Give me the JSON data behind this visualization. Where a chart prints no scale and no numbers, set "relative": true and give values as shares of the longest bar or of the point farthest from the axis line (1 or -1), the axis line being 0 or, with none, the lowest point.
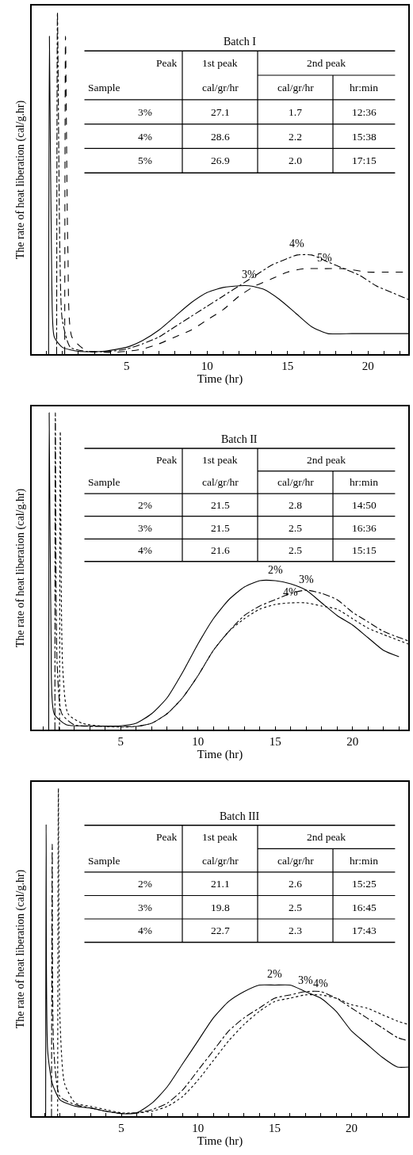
{
  "chart_data": [
    {
      "type": "line",
      "title": "Batch I",
      "xlabel": "Time (hr)",
      "ylabel": "The rate of heat liberation (cal/g.hr)",
      "relative": true,
      "tick_labels": "x",
      "xlim": [
        -0.9,
        22.5
      ],
      "xticks": [
        {
          "value": 0,
          "label": null
        },
        {
          "value": 1,
          "label": null
        },
        {
          "value": 2,
          "label": null
        },
        {
          "value": 3,
          "label": null
        },
        {
          "value": 4,
          "label": null
        },
        5,
        {
          "value": 6,
          "label": null
        },
        {
          "value": 7,
          "label": null
        },
        {
          "value": 8,
          "label": null
        },
        {
          "value": 9,
          "label": null
        },
        10,
        {
          "value": 11,
          "label": null
        },
        {
          "value": 12,
          "label": null
        },
        {
          "value": 13,
          "label": null
        },
        {
          "value": 14,
          "label": null
        },
        15,
        {
          "value": 16,
          "label": null
        },
        {
          "value": 17,
          "label": null
        },
        {
          "value": 18,
          "label": null
        },
        {
          "value": 19,
          "label": null
        },
        20,
        {
          "value": 21,
          "label": null
        },
        {
          "value": 22,
          "label": null
        }
      ],
      "series": [
        {
          "color": "#000000",
          "line_style": "solid",
          "x": [
            0.15,
            0.2,
            0.35,
            0.5,
            1,
            2,
            3.5,
            5,
            6,
            7,
            8,
            9,
            10,
            11,
            12,
            12.6,
            13.5,
            14.5,
            15.5,
            16.5,
            17.5,
            19,
            20,
            21,
            22.5
          ],
          "values": [
            0,
            0.93,
            0.2,
            0.05,
            0.02,
            0.008,
            0.008,
            0.02,
            0.04,
            0.07,
            0.11,
            0.15,
            0.18,
            0.195,
            0.2,
            0.2,
            0.19,
            0.16,
            0.12,
            0.08,
            0.06,
            0.06,
            0.06,
            0.06,
            0.06
          ]
        },
        {
          "color": "#000000",
          "line_style": "dashdot",
          "x": [
            0.65,
            0.7,
            0.85,
            1,
            1.5,
            2.5,
            4,
            5,
            6,
            7,
            8,
            9,
            10,
            11,
            12,
            13,
            14,
            15,
            15.6,
            16.5,
            17.5,
            18.5,
            19.5,
            20.5,
            21.5,
            22.5
          ],
          "values": [
            0,
            1,
            0.3,
            0.1,
            0.02,
            0.008,
            0.008,
            0.015,
            0.03,
            0.05,
            0.08,
            0.11,
            0.14,
            0.17,
            0.2,
            0.23,
            0.26,
            0.28,
            0.29,
            0.29,
            0.27,
            0.25,
            0.23,
            0.2,
            0.18,
            0.16
          ]
        },
        {
          "color": "#000000",
          "line_style": "dashed",
          "x": [
            1.15,
            1.2,
            1.35,
            1.6,
            2.5,
            4,
            5,
            6,
            7,
            8,
            9,
            10,
            11,
            12,
            13,
            14,
            15,
            16,
            17.3,
            18.5,
            20,
            21,
            22.5
          ],
          "values": [
            0,
            0.93,
            0.3,
            0.05,
            0.01,
            0.005,
            0.008,
            0.015,
            0.03,
            0.05,
            0.07,
            0.1,
            0.13,
            0.17,
            0.2,
            0.22,
            0.24,
            0.25,
            0.25,
            0.25,
            0.24,
            0.24,
            0.24
          ]
        }
      ],
      "annotations": [
        "Peak",
        "1st peak",
        "2nd peak",
        "Sample",
        "cal/gr/hr",
        "cal/gr/hr",
        "hr:min",
        "3%",
        "27.1",
        "1.7",
        "12:36",
        "4%",
        "28.6",
        "2.2",
        "15:38",
        "5%",
        "26.9",
        "2.0",
        "17:15",
        {
          "text": "3%",
          "x": 12.6,
          "y": 0.2
        },
        {
          "text": "4%",
          "x": 15.6,
          "y": 0.29
        },
        {
          "text": "5%",
          "x": 17.3,
          "y": 0.25
        }
      ]
    },
    {
      "type": "line",
      "title": "Batch II",
      "xlabel": "Time (hr)",
      "ylabel": "The rate of heat liberation (cal/g.hr)",
      "relative": true,
      "tick_labels": "x",
      "xlim": [
        -0.75,
        23.6
      ],
      "xticks": [
        {
          "value": 0,
          "label": null
        },
        {
          "value": 1,
          "label": null
        },
        {
          "value": 2,
          "label": null
        },
        {
          "value": 3,
          "label": null
        },
        {
          "value": 4,
          "label": null
        },
        5,
        {
          "value": 6,
          "label": null
        },
        {
          "value": 7,
          "label": null
        },
        {
          "value": 8,
          "label": null
        },
        {
          "value": 9,
          "label": null
        },
        10,
        {
          "value": 11,
          "label": null
        },
        {
          "value": 12,
          "label": null
        },
        {
          "value": 13,
          "label": null
        },
        {
          "value": 14,
          "label": null
        },
        15,
        {
          "value": 16,
          "label": null
        },
        {
          "value": 17,
          "label": null
        },
        {
          "value": 18,
          "label": null
        },
        {
          "value": 19,
          "label": null
        },
        20,
        {
          "value": 21,
          "label": null
        },
        {
          "value": 22,
          "label": null
        },
        {
          "value": 23,
          "label": null
        }
      ],
      "series": [
        {
          "color": "#000000",
          "line_style": "solid",
          "x": [
            0.35,
            0.38,
            0.5,
            0.7,
            1.5,
            3,
            5,
            6,
            7,
            8,
            9,
            10,
            11,
            12,
            13,
            14,
            15,
            16,
            17,
            18,
            19,
            20,
            21,
            22,
            23
          ],
          "values": [
            0,
            1,
            0.3,
            0.05,
            0.015,
            0.012,
            0.012,
            0.02,
            0.05,
            0.1,
            0.18,
            0.27,
            0.35,
            0.41,
            0.45,
            0.47,
            0.47,
            0.46,
            0.44,
            0.4,
            0.36,
            0.33,
            0.29,
            0.25,
            0.23
          ]
        },
        {
          "color": "#000000",
          "line_style": "dashdot",
          "x": [
            0.75,
            0.78,
            0.9,
            1.2,
            2,
            4,
            5,
            6,
            7,
            8,
            9,
            10,
            11,
            12,
            13,
            14,
            15,
            16,
            17,
            18,
            19,
            20,
            21,
            22,
            23.6
          ],
          "values": [
            0,
            1,
            0.2,
            0.05,
            0.015,
            0.01,
            0.01,
            0.01,
            0.02,
            0.05,
            0.1,
            0.17,
            0.25,
            0.31,
            0.36,
            0.39,
            0.41,
            0.43,
            0.44,
            0.43,
            0.41,
            0.37,
            0.34,
            0.31,
            0.28
          ]
        },
        {
          "color": "#000000",
          "line_style": "dotted",
          "x": [
            1.05,
            1.1,
            1.25,
            1.6,
            2.5,
            4,
            5,
            6,
            7,
            8,
            9,
            10,
            11,
            12,
            13,
            14,
            15,
            16,
            17,
            18,
            19,
            20,
            21,
            22,
            23.6
          ],
          "values": [
            0,
            0.94,
            0.2,
            0.05,
            0.02,
            0.01,
            0.008,
            0.01,
            0.02,
            0.05,
            0.1,
            0.17,
            0.25,
            0.31,
            0.35,
            0.38,
            0.395,
            0.4,
            0.4,
            0.39,
            0.38,
            0.35,
            0.32,
            0.3,
            0.27
          ]
        }
      ],
      "annotations": [
        "Peak",
        "1st peak",
        "2nd peak",
        "Sample",
        "cal/gr/hr",
        "cal/gr/hr",
        "hr:min",
        "2%",
        "21.5",
        "2.8",
        "14:50",
        "3%",
        "21.5",
        "2.5",
        "16:36",
        "4%",
        "21.6",
        "2.5",
        "15:15",
        {
          "text": "2%",
          "x": 15,
          "y": 0.47
        },
        {
          "text": "3%",
          "x": 17,
          "y": 0.44
        },
        {
          "text": "4%",
          "x": 16,
          "y": 0.4
        }
      ]
    },
    {
      "type": "line",
      "title": "Batch III",
      "xlabel": "Time (hr)",
      "ylabel": "The rate of heat liberation (cal/g.hr)",
      "relative": true,
      "tick_labels": "x",
      "xlim": [
        -0.84,
        23.7
      ],
      "xticks": [
        {
          "value": 0,
          "label": null
        },
        {
          "value": 1,
          "label": null
        },
        {
          "value": 2,
          "label": null
        },
        {
          "value": 3,
          "label": null
        },
        {
          "value": 4,
          "label": null
        },
        5,
        {
          "value": 6,
          "label": null
        },
        {
          "value": 7,
          "label": null
        },
        {
          "value": 8,
          "label": null
        },
        {
          "value": 9,
          "label": null
        },
        10,
        {
          "value": 11,
          "label": null
        },
        {
          "value": 12,
          "label": null
        },
        {
          "value": 13,
          "label": null
        },
        {
          "value": 14,
          "label": null
        },
        15,
        {
          "value": 16,
          "label": null
        },
        {
          "value": 17,
          "label": null
        },
        {
          "value": 18,
          "label": null
        },
        {
          "value": 19,
          "label": null
        },
        20,
        {
          "value": 21,
          "label": null
        },
        {
          "value": 22,
          "label": null
        },
        {
          "value": 23,
          "label": null
        }
      ],
      "series": [
        {
          "color": "#000000",
          "line_style": "solid",
          "x": [
            0.07,
            0.1,
            0.2,
            0.5,
            1,
            2,
            3,
            4,
            5,
            6,
            7,
            8,
            9,
            10,
            11,
            12,
            13,
            14,
            15,
            16,
            17,
            18,
            19,
            20,
            21,
            22,
            23,
            23.7
          ],
          "values": [
            0,
            0.89,
            0.2,
            0.1,
            0.05,
            0.03,
            0.025,
            0.015,
            0.008,
            0.01,
            0.04,
            0.09,
            0.16,
            0.23,
            0.3,
            0.35,
            0.38,
            0.4,
            0.4,
            0.4,
            0.38,
            0.36,
            0.32,
            0.26,
            0.22,
            0.18,
            0.15,
            0.15
          ]
        },
        {
          "color": "#000000",
          "line_style": "dashdot",
          "x": [
            0.45,
            0.5,
            0.6,
            1,
            2,
            3,
            4,
            5,
            6,
            7,
            8,
            9,
            10,
            11,
            12,
            13,
            14,
            15,
            16,
            17,
            18,
            19,
            20,
            21,
            22,
            23,
            23.7
          ],
          "values": [
            0,
            0.83,
            0.2,
            0.06,
            0.035,
            0.025,
            0.015,
            0.008,
            0.01,
            0.02,
            0.04,
            0.08,
            0.14,
            0.2,
            0.26,
            0.3,
            0.33,
            0.36,
            0.37,
            0.38,
            0.38,
            0.36,
            0.33,
            0.3,
            0.27,
            0.24,
            0.23
          ]
        },
        {
          "color": "#000000",
          "line_style": "dotted",
          "x": [
            0.85,
            0.9,
            1,
            1.3,
            2,
            3,
            4,
            5,
            6,
            7,
            8,
            9,
            10,
            11,
            12,
            13,
            14,
            15,
            16,
            17,
            18,
            19,
            20,
            21,
            22,
            23,
            23.7
          ],
          "values": [
            0,
            1,
            0.3,
            0.1,
            0.04,
            0.03,
            0.02,
            0.01,
            0.01,
            0.015,
            0.03,
            0.06,
            0.11,
            0.17,
            0.23,
            0.28,
            0.32,
            0.35,
            0.36,
            0.37,
            0.37,
            0.36,
            0.34,
            0.33,
            0.31,
            0.29,
            0.28
          ]
        }
      ],
      "annotations": [
        "Peak",
        "1st peak",
        "2nd peak",
        "Sample",
        "cal/gr/hr",
        "cal/gr/hr",
        "hr:min",
        "2%",
        "21.1",
        "2.6",
        "15:25",
        "3%",
        "19.8",
        "2.5",
        "16:45",
        "4%",
        "22.7",
        "2.3",
        "17:43",
        {
          "text": "2%",
          "x": 15,
          "y": 0.4
        },
        {
          "text": "3%",
          "x": 17,
          "y": 0.38
        },
        {
          "text": "4%",
          "x": 18,
          "y": 0.37
        }
      ]
    }
  ]
}
